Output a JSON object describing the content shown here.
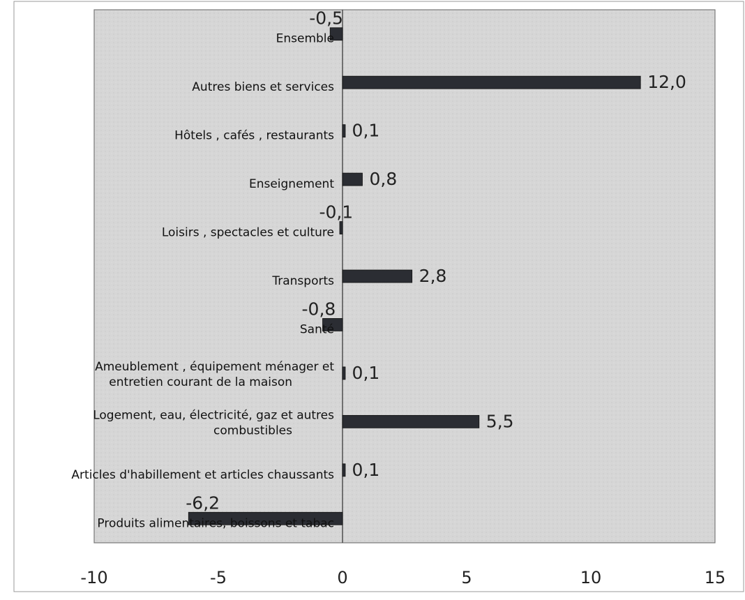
{
  "chart_data": {
    "type": "bar",
    "orientation": "horizontal",
    "categories": [
      "Ensemble",
      "Autres biens et services",
      "Hôtels , cafés , restaurants",
      "Enseignement",
      "Loisirs , spectacles et culture",
      "Transports",
      "Santé",
      "Ameublement , équipement ménager et entretien courant de la maison",
      "Logement, eau, électricité, gaz et autres combustibles",
      "Articles d'habillement et articles chaussants",
      "Produits alimentaires, boissons et tabac"
    ],
    "values": [
      -0.5,
      12.0,
      0.1,
      0.8,
      -0.1,
      2.8,
      -0.8,
      0.1,
      5.5,
      0.1,
      -6.2
    ],
    "value_labels": [
      "-0,5",
      "12,0",
      "0,1",
      "0,8",
      "-0,1",
      "2,8",
      "-0,8",
      "0,1",
      "5,5",
      "0,1",
      "-6,2"
    ],
    "xlim": [
      -10,
      15
    ],
    "xticks": [
      -10,
      -5,
      0,
      5,
      10,
      15
    ],
    "xtick_labels": [
      "-10",
      "-5",
      "0",
      "5",
      "10",
      "15"
    ],
    "title": "",
    "xlabel": "",
    "ylabel": "",
    "grid": false,
    "legend": "none",
    "colors": {
      "bar": "#2b2d33",
      "plot_background": "#d9d9d9",
      "frame": "#777777",
      "text": "#111111"
    }
  }
}
